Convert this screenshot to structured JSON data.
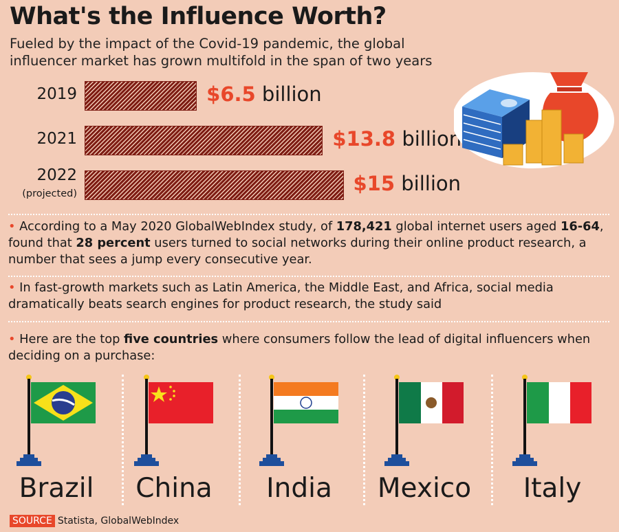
{
  "title": "What's the Influence Worth?",
  "subtitle": [
    "Fueled by the impact of the Covid-19 pandemic, the global",
    "influencer market has grown multifold in the span of two years"
  ],
  "chart_data": {
    "type": "bar",
    "orientation": "horizontal",
    "categories": [
      "2019",
      "2021",
      "2022"
    ],
    "category_notes": [
      "",
      "",
      "(projected)"
    ],
    "values": [
      6.5,
      13.8,
      15
    ],
    "data_labels": [
      {
        "amount": "$6.5",
        "unit": "billion"
      },
      {
        "amount": "$13.8",
        "unit": "billion"
      },
      {
        "amount": "$15",
        "unit": "billion"
      }
    ],
    "bar_color": "#7e1d14",
    "label_color": "#e8472a"
  },
  "bullets": [
    {
      "parts": [
        [
          "According to a May 2020 GlobalWebIndex study, of ",
          false
        ],
        [
          "178,421",
          true
        ],
        [
          " global internet users aged ",
          false
        ],
        [
          "16-64",
          true
        ],
        [
          ", found that ",
          false
        ],
        [
          "28 percent",
          true
        ],
        [
          " users turned to social networks during their online product research, a number that sees a jump every consecutive year.",
          false
        ]
      ]
    },
    {
      "parts": [
        [
          "In fast-growth markets such as Latin America, the Middle East, and Africa, social media dramatically beats search engines for product research, the study said",
          false
        ]
      ]
    },
    {
      "parts": [
        [
          "Here are the top ",
          false
        ],
        [
          "five countries",
          true
        ],
        [
          " where consumers follow the lead of digital influencers when deciding on a purchase:",
          false
        ]
      ]
    }
  ],
  "countries": [
    "Brazil",
    "China",
    "India",
    "Mexico",
    "Italy"
  ],
  "source": {
    "tag": "SOURCE",
    "text": "Statista, GlobalWebIndex"
  }
}
